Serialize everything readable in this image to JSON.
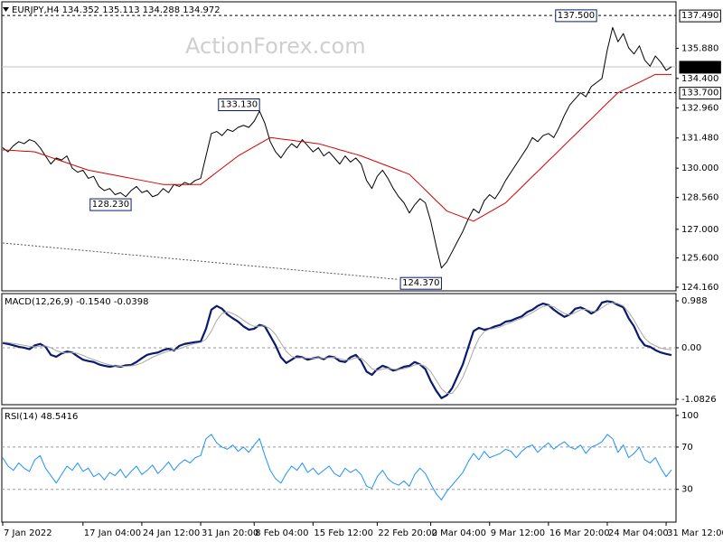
{
  "watermark": "ActionForex.com",
  "chart_data": [
    {
      "type": "line",
      "title": "EURJPY,H4  134.352 135.113 134.288 134.972",
      "categories": [
        "7 Jan 2022",
        null,
        null,
        null,
        null,
        null,
        null,
        null,
        null,
        null,
        null,
        null,
        null,
        null,
        null,
        "17 Jan 04:00",
        null,
        null,
        null,
        null,
        null,
        null,
        null,
        null,
        null,
        null,
        "24 Jan 12:00",
        null,
        null,
        null,
        null,
        null,
        null,
        null,
        null,
        null,
        null,
        "31 Jan 20:00",
        null,
        null,
        null,
        null,
        null,
        null,
        null,
        null,
        null,
        "8 Feb 04:00",
        null,
        null,
        null,
        null,
        null,
        null,
        null,
        null,
        null,
        null,
        "15 Feb 12:00",
        null,
        null,
        null,
        null,
        null,
        null,
        null,
        null,
        null,
        null,
        null,
        "22 Feb 20:00",
        null,
        null,
        null,
        null,
        null,
        null,
        null,
        null,
        null,
        "2 Mar 04:00",
        null,
        null,
        null,
        null,
        null,
        null,
        null,
        null,
        null,
        null,
        "9 Mar 12:00",
        null,
        null,
        null,
        null,
        null,
        null,
        null,
        null,
        null,
        null,
        "16 Mar 20:00",
        null,
        null,
        null,
        null,
        null,
        null,
        null,
        null,
        null,
        null,
        "24 Mar 04:00",
        null,
        null,
        null,
        null,
        null,
        null,
        null,
        null,
        null,
        null,
        "31 Mar 12:00",
        null
      ],
      "series": [
        {
          "color": "#000000",
          "line_width": 1,
          "values": [
            131.0,
            130.8,
            131.1,
            131.3,
            131.2,
            131.4,
            131.3,
            131.0,
            130.6,
            130.2,
            130.5,
            130.4,
            130.6,
            130.0,
            129.8,
            129.9,
            129.5,
            129.6,
            129.1,
            128.9,
            129.0,
            128.7,
            128.8,
            128.6,
            128.9,
            129.1,
            128.8,
            128.9,
            128.6,
            128.7,
            129.0,
            128.8,
            129.2,
            129.1,
            129.3,
            129.2,
            129.4,
            129.5,
            130.6,
            131.7,
            131.8,
            131.6,
            131.9,
            131.8,
            132.0,
            132.1,
            132.0,
            132.3,
            132.8,
            132.2,
            131.3,
            130.8,
            130.5,
            130.9,
            131.2,
            131.0,
            131.4,
            131.1,
            130.8,
            131.0,
            130.6,
            130.8,
            130.5,
            130.2,
            130.6,
            130.3,
            130.5,
            130.2,
            129.4,
            129.0,
            129.6,
            129.9,
            129.5,
            129.0,
            128.6,
            128.3,
            127.8,
            128.2,
            128.5,
            128.3,
            127.4,
            126.2,
            125.1,
            125.4,
            125.9,
            126.4,
            126.9,
            127.5,
            128.0,
            127.8,
            128.4,
            128.7,
            128.5,
            128.9,
            129.4,
            129.8,
            130.2,
            130.6,
            131.0,
            131.5,
            131.3,
            131.6,
            131.7,
            131.5,
            132.0,
            132.6,
            133.1,
            133.4,
            133.7,
            133.5,
            134.0,
            134.2,
            134.4,
            135.8,
            136.9,
            136.2,
            136.6,
            135.9,
            135.6,
            136.0,
            135.3,
            135.0,
            135.5,
            135.2,
            134.8,
            134.972
          ]
        },
        {
          "color": "#d40000",
          "line_width": 1,
          "values": [
            130.9,
            130.88,
            130.87,
            130.85,
            130.83,
            130.82,
            130.8,
            130.71,
            130.62,
            130.53,
            130.44,
            130.35,
            130.26,
            130.17,
            130.08,
            129.99,
            129.9,
            129.85,
            129.8,
            129.75,
            129.7,
            129.65,
            129.6,
            129.55,
            129.5,
            129.45,
            129.4,
            129.35,
            129.3,
            129.25,
            129.2,
            129.2,
            129.2,
            129.2,
            129.2,
            129.2,
            129.2,
            129.2,
            129.4,
            129.6,
            129.8,
            130.0,
            130.2,
            130.4,
            130.6,
            130.75,
            130.9,
            131.05,
            131.2,
            131.35,
            131.5,
            131.47,
            131.43,
            131.4,
            131.37,
            131.33,
            131.3,
            131.27,
            131.23,
            131.2,
            131.13,
            131.05,
            130.98,
            130.9,
            130.83,
            130.75,
            130.68,
            130.6,
            130.5,
            130.4,
            130.3,
            130.2,
            130.1,
            130.0,
            129.9,
            129.8,
            129.7,
            129.44,
            129.19,
            128.93,
            128.67,
            128.41,
            128.16,
            127.9,
            127.8,
            127.7,
            127.6,
            127.5,
            127.4,
            127.55,
            127.7,
            127.85,
            128.0,
            128.15,
            128.3,
            128.56,
            128.81,
            129.07,
            129.33,
            129.59,
            129.84,
            130.1,
            130.36,
            130.61,
            130.87,
            131.13,
            131.39,
            131.64,
            131.9,
            132.16,
            132.41,
            132.67,
            132.93,
            133.19,
            133.44,
            133.7,
            133.83,
            133.96,
            134.09,
            134.21,
            134.34,
            134.47,
            134.6,
            134.6,
            134.6,
            134.6
          ]
        }
      ],
      "trendline": {
        "x": [
          0,
          74
        ],
        "values": [
          126.33,
          124.54
        ]
      },
      "hlines": [
        {
          "value": 137.49,
          "label": "137.490"
        },
        {
          "value": 133.7,
          "label": "133.700"
        }
      ],
      "current": {
        "value": 134.972,
        "label": "134.972"
      },
      "annotations": [
        {
          "text": "137.500",
          "value": 137.5,
          "index": 111
        },
        {
          "text": "133.130",
          "value": 133.13,
          "index": 48
        },
        {
          "text": "128.230",
          "value": 128.23,
          "index": 24
        },
        {
          "text": "124.370",
          "value": 124.37,
          "index": 82
        }
      ],
      "ylim": [
        123.98,
        138.16
      ],
      "yticks": [
        {
          "value": 135.88,
          "label": "135.880"
        },
        {
          "value": 134.4,
          "label": "134.400"
        },
        {
          "value": 132.96,
          "label": "132.960"
        },
        {
          "value": 131.48,
          "label": "131.480"
        },
        {
          "value": 130.0,
          "label": "130.000"
        },
        {
          "value": 128.56,
          "label": "128.560"
        },
        {
          "value": 127.0,
          "label": "127.000"
        },
        {
          "value": 125.6,
          "label": "125.600"
        },
        {
          "value": 124.16,
          "label": "124.160"
        }
      ]
    },
    {
      "type": "line",
      "title": "MACD(12,26,9) -0.1540 -0.0398",
      "series": [
        {
          "color": "#0a1a6e",
          "line_width": 2.2,
          "values": [
            0.1,
            0.08,
            0.05,
            0.02,
            0.0,
            -0.03,
            0.05,
            0.08,
            0.02,
            -0.15,
            -0.19,
            -0.12,
            -0.08,
            -0.1,
            -0.18,
            -0.25,
            -0.28,
            -0.3,
            -0.35,
            -0.38,
            -0.4,
            -0.38,
            -0.4,
            -0.37,
            -0.36,
            -0.3,
            -0.22,
            -0.15,
            -0.12,
            -0.1,
            -0.05,
            -0.02,
            -0.06,
            0.04,
            0.08,
            0.1,
            0.12,
            0.13,
            0.4,
            0.8,
            0.88,
            0.82,
            0.7,
            0.62,
            0.55,
            0.45,
            0.38,
            0.4,
            0.48,
            0.45,
            0.25,
            0.05,
            -0.2,
            -0.32,
            -0.25,
            -0.18,
            -0.2,
            -0.25,
            -0.22,
            -0.2,
            -0.24,
            -0.18,
            -0.2,
            -0.28,
            -0.3,
            -0.2,
            -0.15,
            -0.28,
            -0.5,
            -0.57,
            -0.45,
            -0.38,
            -0.42,
            -0.48,
            -0.45,
            -0.4,
            -0.38,
            -0.3,
            -0.35,
            -0.45,
            -0.7,
            -0.9,
            -1.06,
            -1.0,
            -0.85,
            -0.6,
            -0.35,
            0.0,
            0.35,
            0.42,
            0.38,
            0.4,
            0.45,
            0.48,
            0.55,
            0.57,
            0.62,
            0.66,
            0.75,
            0.8,
            0.88,
            0.93,
            0.9,
            0.8,
            0.72,
            0.65,
            0.7,
            0.82,
            0.85,
            0.8,
            0.72,
            0.78,
            0.95,
            0.98,
            0.96,
            0.9,
            0.85,
            0.62,
            0.45,
            0.2,
            0.05,
            0.02,
            -0.05,
            -0.1,
            -0.13,
            -0.154
          ]
        },
        {
          "color": "#a8a8a8",
          "line_width": 1,
          "values": [
            0.12,
            0.11,
            0.09,
            0.07,
            0.05,
            0.03,
            0.02,
            0.03,
            0.04,
            0.0,
            -0.06,
            -0.1,
            -0.11,
            -0.1,
            -0.12,
            -0.16,
            -0.21,
            -0.25,
            -0.29,
            -0.33,
            -0.36,
            -0.38,
            -0.39,
            -0.39,
            -0.38,
            -0.36,
            -0.32,
            -0.26,
            -0.2,
            -0.15,
            -0.11,
            -0.07,
            -0.05,
            -0.02,
            0.02,
            0.06,
            0.09,
            0.11,
            0.18,
            0.35,
            0.58,
            0.72,
            0.76,
            0.72,
            0.66,
            0.58,
            0.5,
            0.45,
            0.45,
            0.46,
            0.4,
            0.28,
            0.1,
            -0.08,
            -0.18,
            -0.22,
            -0.21,
            -0.22,
            -0.22,
            -0.21,
            -0.22,
            -0.21,
            -0.2,
            -0.23,
            -0.26,
            -0.25,
            -0.21,
            -0.22,
            -0.32,
            -0.44,
            -0.48,
            -0.45,
            -0.43,
            -0.45,
            -0.46,
            -0.44,
            -0.41,
            -0.36,
            -0.35,
            -0.39,
            -0.5,
            -0.68,
            -0.86,
            -0.96,
            -0.96,
            -0.82,
            -0.62,
            -0.35,
            -0.05,
            0.2,
            0.34,
            0.39,
            0.41,
            0.44,
            0.49,
            0.53,
            0.58,
            0.62,
            0.68,
            0.74,
            0.81,
            0.87,
            0.89,
            0.86,
            0.79,
            0.72,
            0.69,
            0.74,
            0.8,
            0.81,
            0.77,
            0.76,
            0.84,
            0.92,
            0.95,
            0.93,
            0.88,
            0.75,
            0.58,
            0.38,
            0.2,
            0.1,
            0.04,
            -0.01,
            -0.03,
            -0.0398
          ]
        }
      ],
      "levels": [
        0
      ],
      "ylim": [
        -1.198,
        1.14
      ],
      "yticks": [
        0.988,
        {
          "value": 0,
          "label": "0.00"
        },
        -1.0826
      ]
    },
    {
      "type": "line",
      "title": "RSI(14) 48.5416",
      "series": [
        {
          "color": "#1e90ff",
          "line_width": 1,
          "values": [
            60,
            52,
            48,
            55,
            50,
            47,
            58,
            62,
            50,
            43,
            36,
            44,
            52,
            48,
            55,
            47,
            50,
            42,
            45,
            39,
            46,
            43,
            49,
            41,
            47,
            52,
            44,
            48,
            53,
            45,
            50,
            56,
            48,
            54,
            58,
            55,
            60,
            62,
            78,
            82,
            74,
            70,
            68,
            72,
            66,
            70,
            65,
            72,
            78,
            62,
            48,
            40,
            36,
            45,
            52,
            48,
            55,
            46,
            50,
            44,
            48,
            52,
            45,
            42,
            50,
            46,
            49,
            44,
            33,
            31,
            42,
            48,
            40,
            36,
            34,
            38,
            33,
            44,
            50,
            45,
            35,
            26,
            20,
            28,
            34,
            40,
            46,
            56,
            64,
            58,
            66,
            60,
            62,
            64,
            68,
            66,
            60,
            66,
            70,
            72,
            65,
            70,
            74,
            68,
            72,
            75,
            70,
            68,
            72,
            64,
            70,
            72,
            75,
            82,
            78,
            65,
            72,
            60,
            64,
            70,
            58,
            55,
            60,
            50,
            42,
            48.5416
          ]
        }
      ],
      "levels": [
        70,
        30
      ],
      "ylim": [
        -1,
        106.7
      ],
      "yticks": [
        100,
        70,
        30
      ]
    }
  ]
}
